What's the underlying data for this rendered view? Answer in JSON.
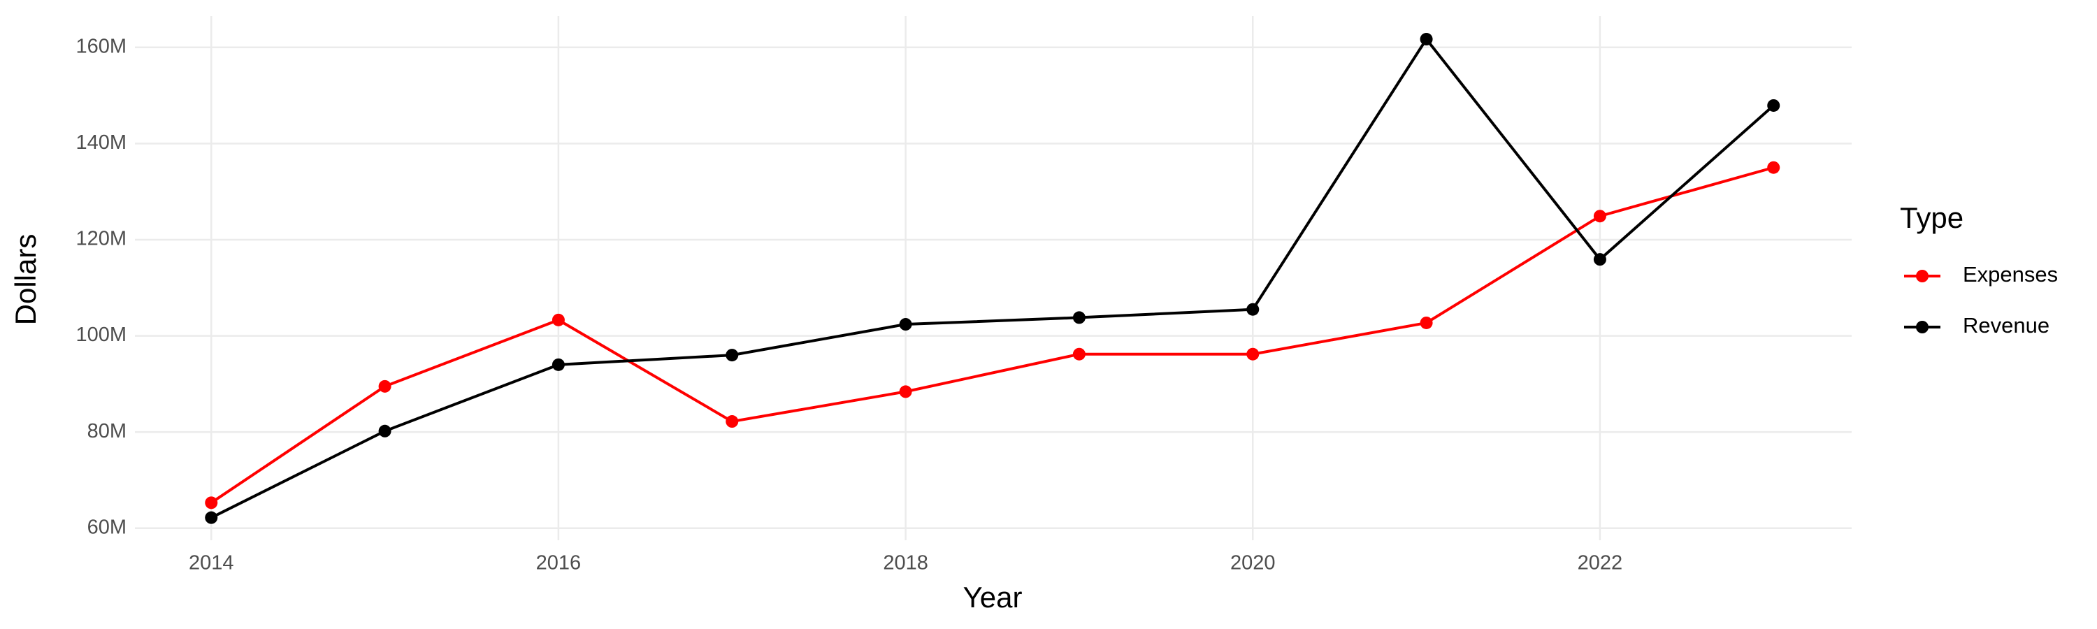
{
  "chart_data": {
    "type": "line",
    "x_label": "Year",
    "y_label": "Dollars",
    "x": [
      2014,
      2015,
      2016,
      2017,
      2018,
      2019,
      2020,
      2021,
      2022,
      2023
    ],
    "series": [
      {
        "name": "Expenses",
        "color": "#ff0000",
        "values": [
          65300000,
          89500000,
          103300000,
          82200000,
          88400000,
          96200000,
          96200000,
          102700000,
          124900000,
          135000000
        ]
      },
      {
        "name": "Revenue",
        "color": "#000000",
        "values": [
          62200000,
          80200000,
          94000000,
          96000000,
          102400000,
          103800000,
          105500000,
          161700000,
          115900000,
          147900000
        ]
      }
    ],
    "legend_title": "Type",
    "xlim": [
      2013.56,
      2023.45
    ],
    "xticks": [
      2014,
      2016,
      2018,
      2020,
      2022
    ],
    "ylim": [
      57500000,
      166500000
    ],
    "yticks": [
      {
        "value": 60000000,
        "label": "60M"
      },
      {
        "value": 80000000,
        "label": "80M"
      },
      {
        "value": 100000000,
        "label": "100M"
      },
      {
        "value": 120000000,
        "label": "120M"
      },
      {
        "value": 140000000,
        "label": "140M"
      },
      {
        "value": 160000000,
        "label": "160M"
      }
    ],
    "grid": true,
    "legend_position": "right"
  }
}
